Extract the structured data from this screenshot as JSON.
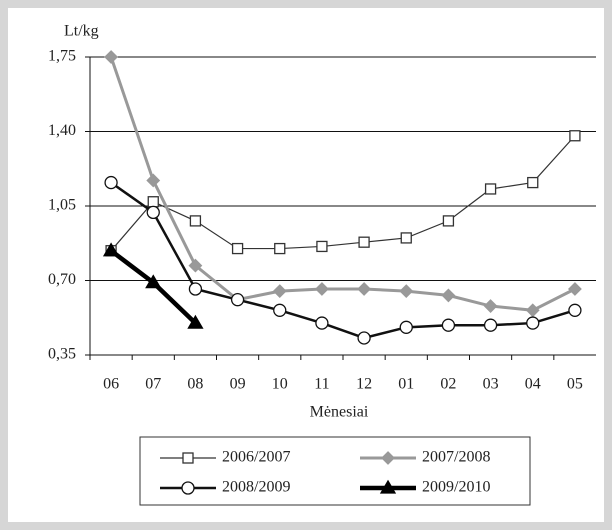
{
  "chart_data": {
    "type": "line",
    "y_axis_label": "Lt/kg",
    "x_axis_label": "Mėnesiai",
    "categories": [
      "06",
      "07",
      "08",
      "09",
      "10",
      "11",
      "12",
      "01",
      "02",
      "03",
      "04",
      "05"
    ],
    "ylim": [
      0.35,
      1.75
    ],
    "yticks": [
      {
        "value": 0.35,
        "label": "0,35"
      },
      {
        "value": 0.7,
        "label": "0,70"
      },
      {
        "value": 1.05,
        "label": "1,05"
      },
      {
        "value": 1.4,
        "label": "1,40"
      },
      {
        "value": 1.75,
        "label": "1,75"
      }
    ],
    "grid": true,
    "series": [
      {
        "name": "2006/2007",
        "color": "#333333",
        "marker": "square",
        "line_width": 1.2,
        "values": [
          0.84,
          1.07,
          0.98,
          0.85,
          0.85,
          0.86,
          0.88,
          0.9,
          0.98,
          1.13,
          1.16,
          1.38
        ]
      },
      {
        "name": "2007/2008",
        "color": "#999999",
        "marker": "diamond",
        "line_width": 3,
        "values": [
          1.75,
          1.17,
          0.77,
          0.61,
          0.65,
          0.66,
          0.66,
          0.65,
          0.63,
          0.58,
          0.56,
          0.66
        ]
      },
      {
        "name": "2008/2009",
        "color": "#111111",
        "marker": "circle",
        "line_width": 2.5,
        "values": [
          1.16,
          1.02,
          0.66,
          0.61,
          0.56,
          0.5,
          0.43,
          0.48,
          0.49,
          0.49,
          0.5,
          0.56
        ]
      },
      {
        "name": "2009/2010",
        "color": "#000000",
        "marker": "triangle",
        "line_width": 4.5,
        "values": [
          0.84,
          0.69,
          0.5,
          null,
          null,
          null,
          null,
          null,
          null,
          null,
          null,
          null
        ]
      }
    ]
  }
}
